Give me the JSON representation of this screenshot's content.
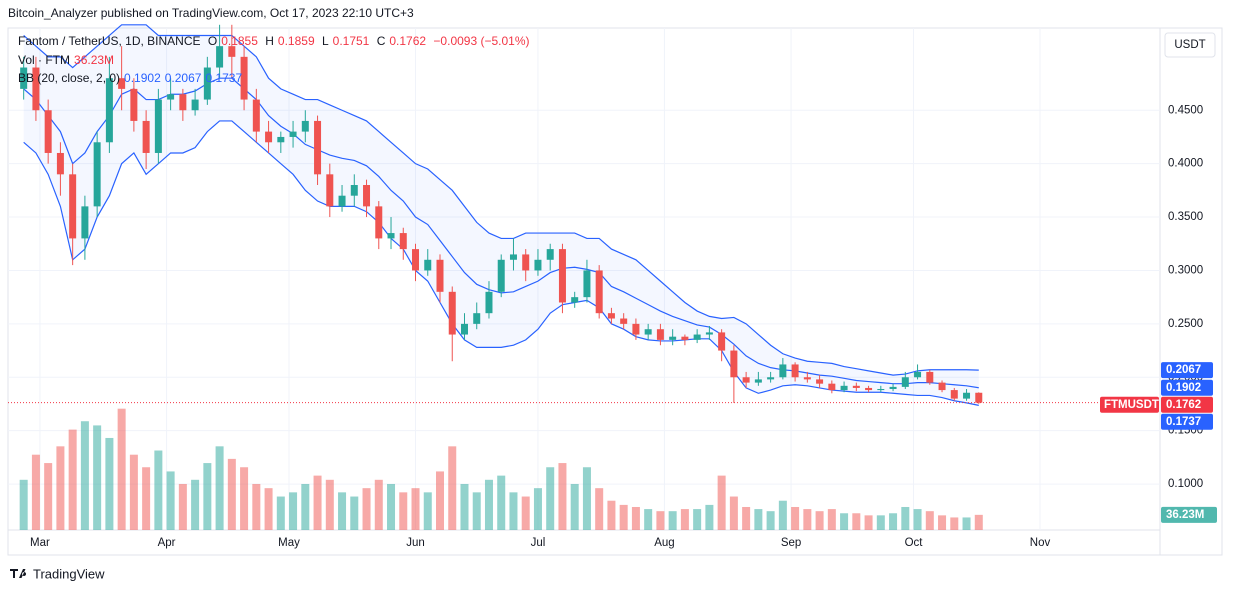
{
  "header": {
    "published": "Bitcoin_Analyzer published on TradingView.com, Oct 17, 2023 22:10 UTC+3",
    "brand": "TradingView",
    "currency_button": "USDT"
  },
  "chart_data": {
    "type": "candlestick",
    "title": "Fantom / TetherUS, 1D, BINANCE",
    "legend_keys": [
      "O",
      "H",
      "L",
      "C"
    ],
    "change": "−0.0093 (−5.01%)",
    "volume_title": "Vol · FTM",
    "volume_label": "36.23M",
    "bb_title": "BB (20, close, 2, 0)",
    "symbol": "FTMUSDT",
    "up_color": "#26a69a",
    "down_color": "#ef5350",
    "bb_color": "#2962ff",
    "grid": true,
    "open": [
      0.47,
      0.49,
      0.45,
      0.41,
      0.39,
      0.33,
      0.36,
      0.42,
      0.48,
      0.47,
      0.44,
      0.41,
      0.46,
      0.465,
      0.45,
      0.46,
      0.49,
      0.51,
      0.5,
      0.46,
      0.43,
      0.42,
      0.425,
      0.43,
      0.44,
      0.39,
      0.36,
      0.37,
      0.38,
      0.36,
      0.33,
      0.335,
      0.32,
      0.3,
      0.31,
      0.28,
      0.24,
      0.25,
      0.26,
      0.28,
      0.31,
      0.315,
      0.3,
      0.31,
      0.32,
      0.27,
      0.275,
      0.3,
      0.26,
      0.255,
      0.25,
      0.24,
      0.245,
      0.235,
      0.238,
      0.235,
      0.24,
      0.242,
      0.225,
      0.2,
      0.195,
      0.198,
      0.2,
      0.212,
      0.2,
      0.198,
      0.194,
      0.188,
      0.192,
      0.19,
      0.188,
      0.189,
      0.191,
      0.2,
      0.205,
      0.195,
      0.188,
      0.18,
      0.1855
    ],
    "high": [
      0.5,
      0.5,
      0.46,
      0.42,
      0.4,
      0.37,
      0.43,
      0.5,
      0.51,
      0.48,
      0.45,
      0.47,
      0.48,
      0.47,
      0.47,
      0.5,
      0.53,
      0.53,
      0.51,
      0.47,
      0.44,
      0.43,
      0.44,
      0.45,
      0.445,
      0.4,
      0.38,
      0.39,
      0.385,
      0.365,
      0.35,
      0.34,
      0.325,
      0.32,
      0.315,
      0.285,
      0.26,
      0.27,
      0.29,
      0.315,
      0.33,
      0.32,
      0.32,
      0.325,
      0.325,
      0.28,
      0.31,
      0.305,
      0.265,
      0.26,
      0.255,
      0.25,
      0.25,
      0.245,
      0.24,
      0.245,
      0.248,
      0.245,
      0.23,
      0.205,
      0.205,
      0.205,
      0.218,
      0.214,
      0.205,
      0.202,
      0.197,
      0.196,
      0.195,
      0.192,
      0.192,
      0.194,
      0.205,
      0.212,
      0.207,
      0.197,
      0.19,
      0.189,
      0.1859
    ],
    "low": [
      0.46,
      0.44,
      0.4,
      0.37,
      0.305,
      0.31,
      0.35,
      0.41,
      0.45,
      0.43,
      0.395,
      0.4,
      0.45,
      0.44,
      0.445,
      0.455,
      0.48,
      0.48,
      0.45,
      0.42,
      0.41,
      0.41,
      0.415,
      0.42,
      0.38,
      0.35,
      0.355,
      0.36,
      0.35,
      0.32,
      0.32,
      0.31,
      0.29,
      0.295,
      0.27,
      0.215,
      0.235,
      0.245,
      0.255,
      0.275,
      0.3,
      0.29,
      0.295,
      0.3,
      0.26,
      0.265,
      0.27,
      0.255,
      0.25,
      0.245,
      0.235,
      0.235,
      0.23,
      0.23,
      0.23,
      0.232,
      0.235,
      0.215,
      0.176,
      0.19,
      0.192,
      0.195,
      0.198,
      0.196,
      0.195,
      0.19,
      0.185,
      0.186,
      0.187,
      0.186,
      0.186,
      0.187,
      0.189,
      0.198,
      0.193,
      0.186,
      0.178,
      0.178,
      0.1751
    ],
    "close": [
      0.49,
      0.45,
      0.41,
      0.39,
      0.33,
      0.36,
      0.42,
      0.48,
      0.47,
      0.44,
      0.41,
      0.46,
      0.465,
      0.45,
      0.46,
      0.49,
      0.51,
      0.5,
      0.46,
      0.43,
      0.42,
      0.425,
      0.43,
      0.44,
      0.39,
      0.36,
      0.37,
      0.38,
      0.36,
      0.33,
      0.335,
      0.32,
      0.3,
      0.31,
      0.28,
      0.24,
      0.25,
      0.26,
      0.28,
      0.31,
      0.315,
      0.3,
      0.31,
      0.32,
      0.27,
      0.275,
      0.3,
      0.26,
      0.255,
      0.25,
      0.24,
      0.245,
      0.235,
      0.238,
      0.235,
      0.24,
      0.242,
      0.225,
      0.2,
      0.195,
      0.198,
      0.2,
      0.212,
      0.2,
      0.198,
      0.194,
      0.188,
      0.192,
      0.19,
      0.188,
      0.189,
      0.191,
      0.2,
      0.205,
      0.195,
      0.188,
      0.18,
      0.1855,
      0.1762
    ],
    "volume": [
      120,
      180,
      160,
      200,
      240,
      260,
      250,
      220,
      290,
      180,
      150,
      190,
      140,
      110,
      120,
      160,
      200,
      170,
      150,
      110,
      100,
      80,
      90,
      110,
      130,
      120,
      90,
      80,
      100,
      120,
      110,
      90,
      100,
      90,
      140,
      200,
      110,
      90,
      120,
      130,
      90,
      80,
      100,
      150,
      160,
      110,
      150,
      100,
      70,
      60,
      55,
      50,
      45,
      45,
      50,
      50,
      60,
      130,
      80,
      55,
      50,
      45,
      70,
      55,
      50,
      45,
      50,
      40,
      40,
      35,
      35,
      40,
      55,
      50,
      45,
      35,
      30,
      30,
      36.23
    ],
    "bb_upper": [
      0.52,
      0.51,
      0.5,
      0.5,
      0.49,
      0.5,
      0.51,
      0.52,
      0.53,
      0.53,
      0.53,
      0.52,
      0.52,
      0.52,
      0.52,
      0.52,
      0.52,
      0.52,
      0.51,
      0.5,
      0.48,
      0.47,
      0.465,
      0.46,
      0.46,
      0.455,
      0.45,
      0.445,
      0.44,
      0.43,
      0.42,
      0.41,
      0.4,
      0.395,
      0.385,
      0.375,
      0.36,
      0.345,
      0.335,
      0.33,
      0.33,
      0.335,
      0.335,
      0.335,
      0.335,
      0.335,
      0.33,
      0.33,
      0.32,
      0.315,
      0.31,
      0.3,
      0.29,
      0.28,
      0.27,
      0.262,
      0.257,
      0.255,
      0.256,
      0.25,
      0.24,
      0.23,
      0.222,
      0.218,
      0.215,
      0.214,
      0.213,
      0.21,
      0.208,
      0.206,
      0.204,
      0.202,
      0.203,
      0.206,
      0.207,
      0.207,
      0.207,
      0.207,
      0.2067
    ],
    "bb_middle": [
      0.47,
      0.46,
      0.445,
      0.43,
      0.4,
      0.41,
      0.43,
      0.445,
      0.465,
      0.47,
      0.46,
      0.46,
      0.465,
      0.465,
      0.468,
      0.475,
      0.48,
      0.48,
      0.47,
      0.46,
      0.445,
      0.435,
      0.428,
      0.418,
      0.413,
      0.408,
      0.405,
      0.403,
      0.398,
      0.388,
      0.375,
      0.365,
      0.35,
      0.343,
      0.328,
      0.313,
      0.298,
      0.287,
      0.282,
      0.279,
      0.28,
      0.285,
      0.29,
      0.298,
      0.302,
      0.303,
      0.301,
      0.298,
      0.285,
      0.28,
      0.274,
      0.268,
      0.262,
      0.257,
      0.253,
      0.249,
      0.247,
      0.24,
      0.231,
      0.22,
      0.213,
      0.209,
      0.207,
      0.206,
      0.204,
      0.202,
      0.201,
      0.199,
      0.197,
      0.196,
      0.195,
      0.194,
      0.194,
      0.195,
      0.195,
      0.194,
      0.193,
      0.192,
      0.1902
    ],
    "bb_lower": [
      0.42,
      0.41,
      0.39,
      0.36,
      0.31,
      0.32,
      0.35,
      0.37,
      0.4,
      0.41,
      0.39,
      0.4,
      0.41,
      0.41,
      0.415,
      0.43,
      0.44,
      0.44,
      0.43,
      0.42,
      0.41,
      0.4,
      0.39,
      0.375,
      0.365,
      0.36,
      0.36,
      0.36,
      0.355,
      0.345,
      0.33,
      0.32,
      0.3,
      0.29,
      0.27,
      0.25,
      0.235,
      0.228,
      0.228,
      0.228,
      0.23,
      0.235,
      0.245,
      0.26,
      0.268,
      0.27,
      0.272,
      0.265,
      0.25,
      0.245,
      0.238,
      0.235,
      0.234,
      0.234,
      0.235,
      0.236,
      0.236,
      0.225,
      0.205,
      0.19,
      0.185,
      0.188,
      0.192,
      0.193,
      0.192,
      0.19,
      0.188,
      0.187,
      0.186,
      0.186,
      0.186,
      0.185,
      0.184,
      0.183,
      0.183,
      0.181,
      0.178,
      0.176,
      0.1737
    ],
    "xlim": [
      -1.28,
      92.8
    ],
    "xticks": [
      {
        "value": 1.33,
        "label": "Mar"
      },
      {
        "value": 11.67,
        "label": "Apr"
      },
      {
        "value": 21.67,
        "label": "May"
      },
      {
        "value": 32,
        "label": "Jun"
      },
      {
        "value": 42,
        "label": "Jul"
      },
      {
        "value": 52.33,
        "label": "Aug"
      },
      {
        "value": 62.67,
        "label": "Sep"
      },
      {
        "value": 72.67,
        "label": "Oct"
      },
      {
        "value": 83,
        "label": "Nov"
      }
    ],
    "ylim": [
      0.057,
      0.527
    ],
    "yticks": [
      {
        "value": 0.1,
        "label": "0.1000"
      },
      {
        "value": 0.15,
        "label": "0.1500"
      },
      {
        "value": 0.2,
        "label": "0.2000"
      },
      {
        "value": 0.25,
        "label": "0.2500"
      },
      {
        "value": 0.3,
        "label": "0.3000"
      },
      {
        "value": 0.35,
        "label": "0.3500"
      },
      {
        "value": 0.4,
        "label": "0.4000"
      },
      {
        "value": 0.45,
        "label": "0.4500"
      }
    ],
    "volume_lim": [
      0,
      1200
    ]
  }
}
